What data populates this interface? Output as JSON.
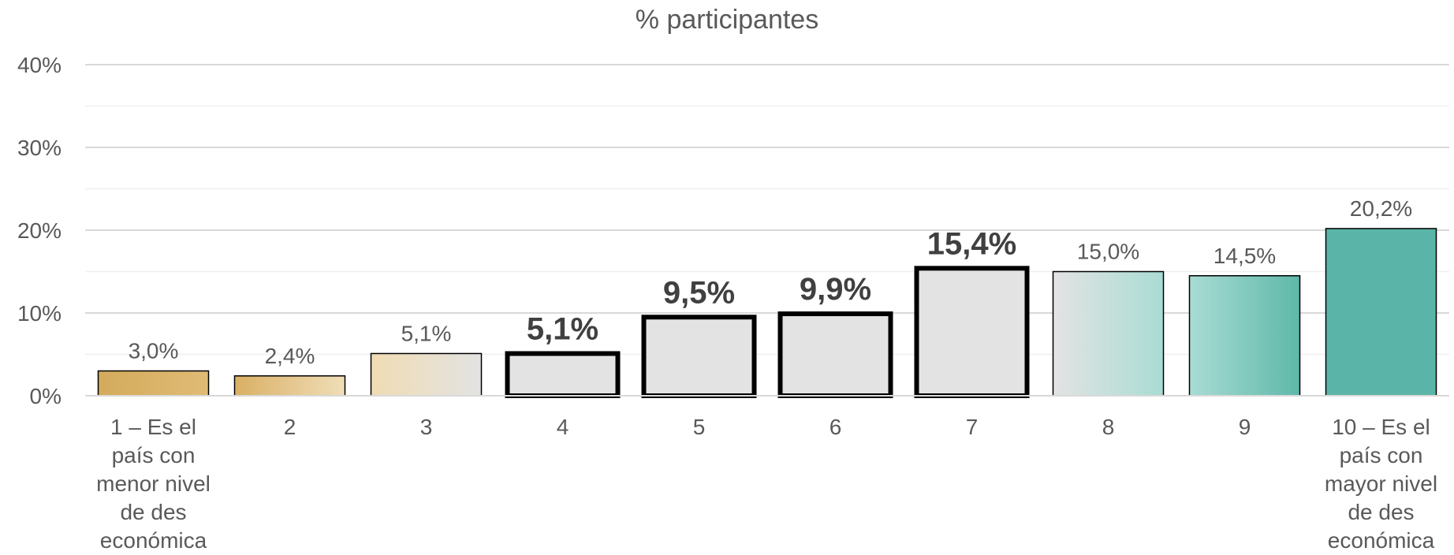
{
  "chart_data": {
    "type": "bar",
    "title": "% participantes",
    "xlabel": "",
    "ylabel": "",
    "ylim": [
      0,
      40
    ],
    "yticks": [
      0,
      10,
      20,
      30,
      40
    ],
    "ytick_labels": [
      "0%",
      "10%",
      "20%",
      "30%",
      "40%"
    ],
    "grid": true,
    "categories": [
      "1 – Es el país con menor nivel de des económica",
      "2",
      "3",
      "4",
      "5",
      "6",
      "7",
      "8",
      "9",
      "10 – Es el país con mayor nivel de des económica"
    ],
    "category_lines": [
      [
        "1 – Es el",
        "país con",
        "menor nivel",
        "de des",
        "económica"
      ],
      [
        "2"
      ],
      [
        "3"
      ],
      [
        "4"
      ],
      [
        "5"
      ],
      [
        "6"
      ],
      [
        "7"
      ],
      [
        "8"
      ],
      [
        "9"
      ],
      [
        "10 – Es el",
        "país con",
        "mayor nivel",
        "de des",
        "económica"
      ]
    ],
    "values": [
      3.0,
      2.4,
      5.1,
      5.1,
      9.5,
      9.9,
      15.4,
      15.0,
      14.5,
      20.2
    ],
    "data_labels": [
      "3,0%",
      "2,4%",
      "5,1%",
      "5,1%",
      "9,5%",
      "9,9%",
      "15,4%",
      "15,0%",
      "14,5%",
      "20,2%"
    ],
    "highlighted": [
      false,
      false,
      false,
      true,
      true,
      true,
      true,
      false,
      false,
      false
    ],
    "fills": [
      [
        "#d4ab5c",
        "#e0bb75"
      ],
      [
        "#d9b064",
        "#f0deb8"
      ],
      [
        "#f0dcb3",
        "#e3e3e3"
      ],
      [
        "#e3e3e3",
        "#e3e3e3"
      ],
      [
        "#e3e3e3",
        "#e3e3e3"
      ],
      [
        "#e3e3e3",
        "#e3e3e3"
      ],
      [
        "#e3e3e3",
        "#e3e3e3"
      ],
      [
        "#e3e3e3",
        "#a9dcd4"
      ],
      [
        "#a9dcd4",
        "#5eb8a9"
      ],
      [
        "#5ab4a7",
        "#5ab4a7"
      ]
    ],
    "colors": {
      "text": "#595959",
      "bold_text": "#404040",
      "grid": "#d9d9d9",
      "minor_grid": "#efefef"
    }
  }
}
